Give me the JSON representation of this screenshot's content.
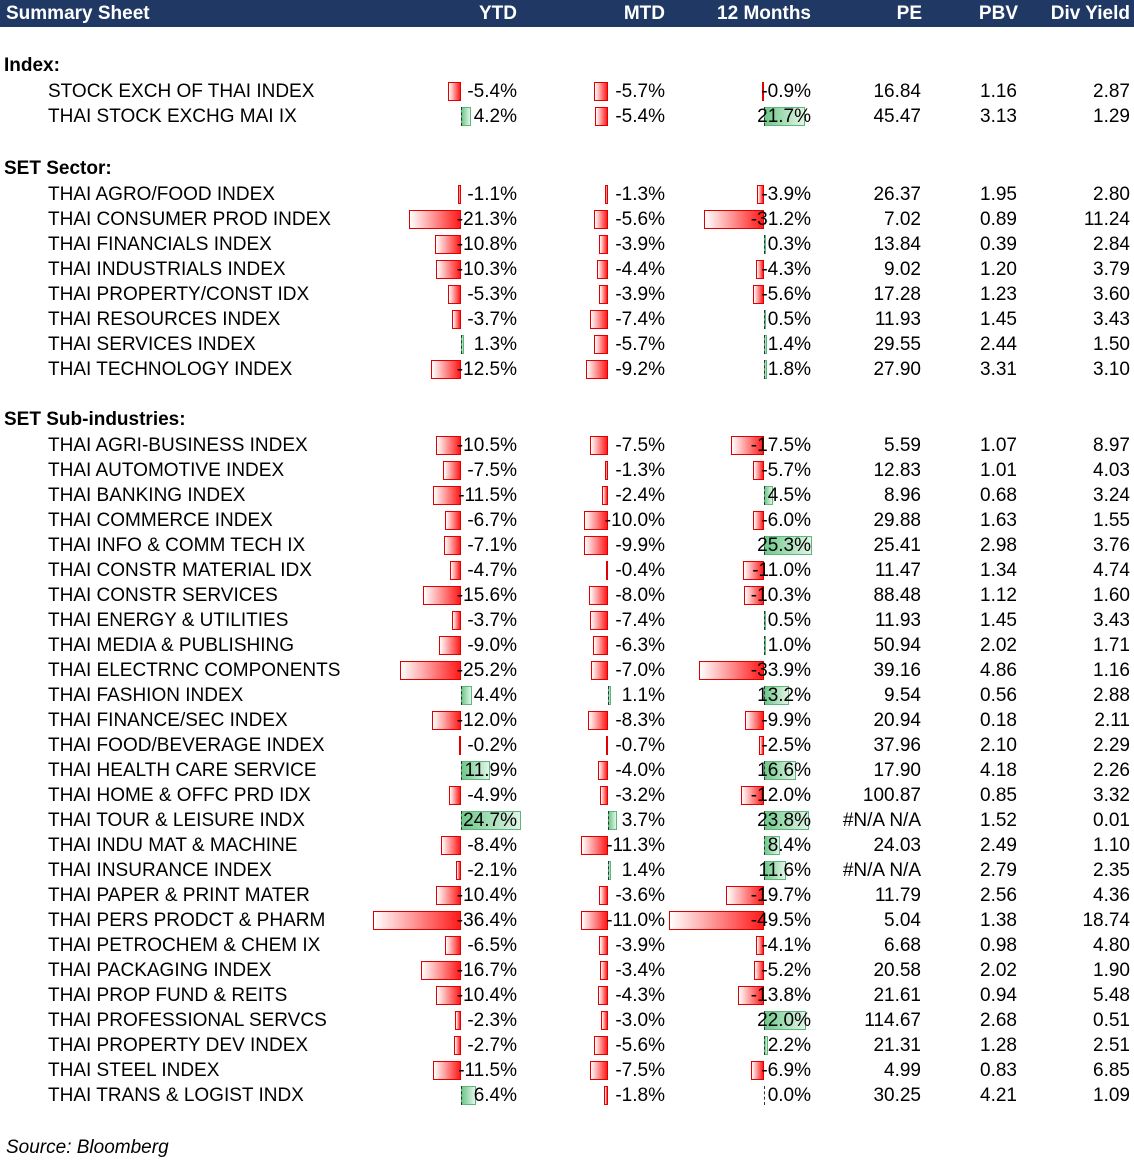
{
  "header": {
    "title": "Summary Sheet",
    "columns": [
      "YTD",
      "MTD",
      "12 Months",
      "PE",
      "PBV",
      "Div Yield"
    ]
  },
  "colors": {
    "header_bg": "#1f3864",
    "negative_bar": "#ff1a1a",
    "positive_bar": "#6ec88a"
  },
  "sections": [
    {
      "title": "Index:",
      "rows": [
        {
          "name": "STOCK EXCH OF THAI INDEX",
          "ytd": -5.4,
          "ytd_text": "-5.4%",
          "mtd": -5.7,
          "mtd_text": "-5.7%",
          "m12": -0.9,
          "m12_text": "-0.9%",
          "pe": "16.84",
          "pbv": "1.16",
          "div": "2.87"
        },
        {
          "name": "THAI STOCK EXCHG MAI IX",
          "ytd": 4.2,
          "ytd_text": "4.2%",
          "mtd": -5.4,
          "mtd_text": "-5.4%",
          "m12": 21.7,
          "m12_text": "21.7%",
          "pe": "45.47",
          "pbv": "3.13",
          "div": "1.29"
        }
      ]
    },
    {
      "title": "SET Sector:",
      "rows": [
        {
          "name": "THAI AGRO/FOOD INDEX",
          "ytd": -1.1,
          "ytd_text": "-1.1%",
          "mtd": -1.3,
          "mtd_text": "-1.3%",
          "m12": -3.9,
          "m12_text": "-3.9%",
          "pe": "26.37",
          "pbv": "1.95",
          "div": "2.80"
        },
        {
          "name": "THAI CONSUMER PROD INDEX",
          "ytd": -21.3,
          "ytd_text": "-21.3%",
          "mtd": -5.6,
          "mtd_text": "-5.6%",
          "m12": -31.2,
          "m12_text": "-31.2%",
          "pe": "7.02",
          "pbv": "0.89",
          "div": "11.24"
        },
        {
          "name": "THAI FINANCIALS INDEX",
          "ytd": -10.8,
          "ytd_text": "-10.8%",
          "mtd": -3.9,
          "mtd_text": "-3.9%",
          "m12": 0.3,
          "m12_text": "0.3%",
          "pe": "13.84",
          "pbv": "0.39",
          "div": "2.84"
        },
        {
          "name": "THAI INDUSTRIALS INDEX",
          "ytd": -10.3,
          "ytd_text": "-10.3%",
          "mtd": -4.4,
          "mtd_text": "-4.4%",
          "m12": -4.3,
          "m12_text": "-4.3%",
          "pe": "9.02",
          "pbv": "1.20",
          "div": "3.79"
        },
        {
          "name": "THAI PROPERTY/CONST IDX",
          "ytd": -5.3,
          "ytd_text": "-5.3%",
          "mtd": -3.9,
          "mtd_text": "-3.9%",
          "m12": -5.6,
          "m12_text": "-5.6%",
          "pe": "17.28",
          "pbv": "1.23",
          "div": "3.60"
        },
        {
          "name": "THAI RESOURCES INDEX",
          "ytd": -3.7,
          "ytd_text": "-3.7%",
          "mtd": -7.4,
          "mtd_text": "-7.4%",
          "m12": 0.5,
          "m12_text": "0.5%",
          "pe": "11.93",
          "pbv": "1.45",
          "div": "3.43"
        },
        {
          "name": "THAI SERVICES INDEX",
          "ytd": 1.3,
          "ytd_text": "1.3%",
          "mtd": -5.7,
          "mtd_text": "-5.7%",
          "m12": 1.4,
          "m12_text": "1.4%",
          "pe": "29.55",
          "pbv": "2.44",
          "div": "1.50"
        },
        {
          "name": "THAI TECHNOLOGY INDEX",
          "ytd": -12.5,
          "ytd_text": "-12.5%",
          "mtd": -9.2,
          "mtd_text": "-9.2%",
          "m12": 1.8,
          "m12_text": "1.8%",
          "pe": "27.90",
          "pbv": "3.31",
          "div": "3.10"
        }
      ]
    },
    {
      "title": "SET Sub-industries:",
      "rows": [
        {
          "name": "THAI AGRI-BUSINESS INDEX",
          "ytd": -10.5,
          "ytd_text": "-10.5%",
          "mtd": -7.5,
          "mtd_text": "-7.5%",
          "m12": -17.5,
          "m12_text": "-17.5%",
          "pe": "5.59",
          "pbv": "1.07",
          "div": "8.97"
        },
        {
          "name": "THAI AUTOMOTIVE INDEX",
          "ytd": -7.5,
          "ytd_text": "-7.5%",
          "mtd": -1.3,
          "mtd_text": "-1.3%",
          "m12": -5.7,
          "m12_text": "-5.7%",
          "pe": "12.83",
          "pbv": "1.01",
          "div": "4.03"
        },
        {
          "name": "THAI BANKING INDEX",
          "ytd": -11.5,
          "ytd_text": "-11.5%",
          "mtd": -2.4,
          "mtd_text": "-2.4%",
          "m12": 4.5,
          "m12_text": "4.5%",
          "pe": "8.96",
          "pbv": "0.68",
          "div": "3.24"
        },
        {
          "name": "THAI COMMERCE INDEX",
          "ytd": -6.7,
          "ytd_text": "-6.7%",
          "mtd": -10.0,
          "mtd_text": "-10.0%",
          "m12": -6.0,
          "m12_text": "-6.0%",
          "pe": "29.88",
          "pbv": "1.63",
          "div": "1.55"
        },
        {
          "name": "THAI INFO & COMM TECH IX",
          "ytd": -7.1,
          "ytd_text": "-7.1%",
          "mtd": -9.9,
          "mtd_text": "-9.9%",
          "m12": 25.3,
          "m12_text": "25.3%",
          "pe": "25.41",
          "pbv": "2.98",
          "div": "3.76"
        },
        {
          "name": "THAI CONSTR MATERIAL IDX",
          "ytd": -4.7,
          "ytd_text": "-4.7%",
          "mtd": -0.4,
          "mtd_text": "-0.4%",
          "m12": -11.0,
          "m12_text": "-11.0%",
          "pe": "11.47",
          "pbv": "1.34",
          "div": "4.74"
        },
        {
          "name": "THAI CONSTR SERVICES",
          "ytd": -15.6,
          "ytd_text": "-15.6%",
          "mtd": -8.0,
          "mtd_text": "-8.0%",
          "m12": -10.3,
          "m12_text": "-10.3%",
          "pe": "88.48",
          "pbv": "1.12",
          "div": "1.60"
        },
        {
          "name": "THAI ENERGY & UTILITIES",
          "ytd": -3.7,
          "ytd_text": "-3.7%",
          "mtd": -7.4,
          "mtd_text": "-7.4%",
          "m12": 0.5,
          "m12_text": "0.5%",
          "pe": "11.93",
          "pbv": "1.45",
          "div": "3.43"
        },
        {
          "name": "THAI MEDIA & PUBLISHING",
          "ytd": -9.0,
          "ytd_text": "-9.0%",
          "mtd": -6.3,
          "mtd_text": "-6.3%",
          "m12": 1.0,
          "m12_text": "1.0%",
          "pe": "50.94",
          "pbv": "2.02",
          "div": "1.71"
        },
        {
          "name": "THAI ELECTRNC COMPONENTS",
          "ytd": -25.2,
          "ytd_text": "-25.2%",
          "mtd": -7.0,
          "mtd_text": "-7.0%",
          "m12": -33.9,
          "m12_text": "-33.9%",
          "pe": "39.16",
          "pbv": "4.86",
          "div": "1.16"
        },
        {
          "name": "THAI FASHION INDEX",
          "ytd": 4.4,
          "ytd_text": "4.4%",
          "mtd": 1.1,
          "mtd_text": "1.1%",
          "m12": 13.2,
          "m12_text": "13.2%",
          "pe": "9.54",
          "pbv": "0.56",
          "div": "2.88"
        },
        {
          "name": "THAI FINANCE/SEC INDEX",
          "ytd": -12.0,
          "ytd_text": "-12.0%",
          "mtd": -8.3,
          "mtd_text": "-8.3%",
          "m12": -9.9,
          "m12_text": "-9.9%",
          "pe": "20.94",
          "pbv": "0.18",
          "div": "2.11"
        },
        {
          "name": "THAI FOOD/BEVERAGE INDEX",
          "ytd": -0.2,
          "ytd_text": "-0.2%",
          "mtd": -0.7,
          "mtd_text": "-0.7%",
          "m12": -2.5,
          "m12_text": "-2.5%",
          "pe": "37.96",
          "pbv": "2.10",
          "div": "2.29"
        },
        {
          "name": "THAI HEALTH CARE SERVICE",
          "ytd": 11.9,
          "ytd_text": "11.9%",
          "mtd": -4.0,
          "mtd_text": "-4.0%",
          "m12": 16.6,
          "m12_text": "16.6%",
          "pe": "17.90",
          "pbv": "4.18",
          "div": "2.26"
        },
        {
          "name": "THAI HOME & OFFC PRD IDX",
          "ytd": -4.9,
          "ytd_text": "-4.9%",
          "mtd": -3.2,
          "mtd_text": "-3.2%",
          "m12": -12.0,
          "m12_text": "-12.0%",
          "pe": "100.87",
          "pbv": "0.85",
          "div": "3.32"
        },
        {
          "name": "THAI TOUR & LEISURE INDX",
          "ytd": 24.7,
          "ytd_text": "24.7%",
          "mtd": 3.7,
          "mtd_text": "3.7%",
          "m12": 23.8,
          "m12_text": "23.8%",
          "pe": "#N/A N/A",
          "pbv": "1.52",
          "div": "0.01"
        },
        {
          "name": "THAI INDU MAT & MACHINE",
          "ytd": -8.4,
          "ytd_text": "-8.4%",
          "mtd": -11.3,
          "mtd_text": "-11.3%",
          "m12": 8.4,
          "m12_text": "8.4%",
          "pe": "24.03",
          "pbv": "2.49",
          "div": "1.10"
        },
        {
          "name": "THAI INSURANCE INDEX",
          "ytd": -2.1,
          "ytd_text": "-2.1%",
          "mtd": 1.4,
          "mtd_text": "1.4%",
          "m12": 11.6,
          "m12_text": "11.6%",
          "pe": "#N/A N/A",
          "pbv": "2.79",
          "div": "2.35"
        },
        {
          "name": "THAI PAPER & PRINT MATER",
          "ytd": -10.4,
          "ytd_text": "-10.4%",
          "mtd": -3.6,
          "mtd_text": "-3.6%",
          "m12": -19.7,
          "m12_text": "-19.7%",
          "pe": "11.79",
          "pbv": "2.56",
          "div": "4.36"
        },
        {
          "name": "THAI PERS PRODCT & PHARM",
          "ytd": -36.4,
          "ytd_text": "-36.4%",
          "mtd": -11.0,
          "mtd_text": "-11.0%",
          "m12": -49.5,
          "m12_text": "-49.5%",
          "pe": "5.04",
          "pbv": "1.38",
          "div": "18.74"
        },
        {
          "name": "THAI PETROCHEM & CHEM IX",
          "ytd": -6.5,
          "ytd_text": "-6.5%",
          "mtd": -3.9,
          "mtd_text": "-3.9%",
          "m12": -4.1,
          "m12_text": "-4.1%",
          "pe": "6.68",
          "pbv": "0.98",
          "div": "4.80"
        },
        {
          "name": "THAI PACKAGING INDEX",
          "ytd": -16.7,
          "ytd_text": "-16.7%",
          "mtd": -3.4,
          "mtd_text": "-3.4%",
          "m12": -5.2,
          "m12_text": "-5.2%",
          "pe": "20.58",
          "pbv": "2.02",
          "div": "1.90"
        },
        {
          "name": "THAI PROP FUND & REITS",
          "ytd": -10.4,
          "ytd_text": "-10.4%",
          "mtd": -4.3,
          "mtd_text": "-4.3%",
          "m12": -13.8,
          "m12_text": "-13.8%",
          "pe": "21.61",
          "pbv": "0.94",
          "div": "5.48"
        },
        {
          "name": "THAI PROFESSIONAL SERVCS",
          "ytd": -2.3,
          "ytd_text": "-2.3%",
          "mtd": -3.0,
          "mtd_text": "-3.0%",
          "m12": 22.0,
          "m12_text": "22.0%",
          "pe": "114.67",
          "pbv": "2.68",
          "div": "0.51"
        },
        {
          "name": "THAI PROPERTY DEV INDEX",
          "ytd": -2.7,
          "ytd_text": "-2.7%",
          "mtd": -5.6,
          "mtd_text": "-5.6%",
          "m12": 2.2,
          "m12_text": "2.2%",
          "pe": "21.31",
          "pbv": "1.28",
          "div": "2.51"
        },
        {
          "name": "THAI STEEL INDEX",
          "ytd": -11.5,
          "ytd_text": "-11.5%",
          "mtd": -7.5,
          "mtd_text": "-7.5%",
          "m12": -6.9,
          "m12_text": "-6.9%",
          "pe": "4.99",
          "pbv": "0.83",
          "div": "6.85"
        },
        {
          "name": "THAI TRANS & LOGIST INDX",
          "ytd": 6.4,
          "ytd_text": "6.4%",
          "mtd": -1.8,
          "mtd_text": "-1.8%",
          "m12": 0.0,
          "m12_text": "0.0%",
          "pe": "30.25",
          "pbv": "4.21",
          "div": "1.09"
        }
      ]
    }
  ],
  "source": "Source: Bloomberg"
}
